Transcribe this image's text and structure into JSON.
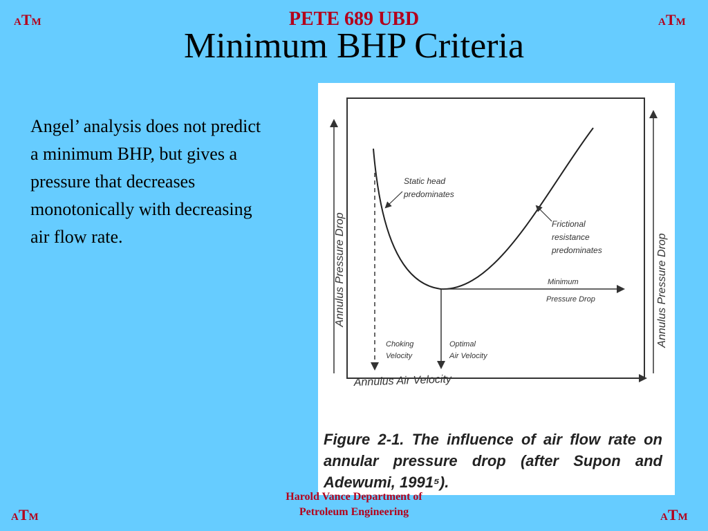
{
  "logo": {
    "small_a": "A",
    "big_t": "T",
    "small_m": "M"
  },
  "header": {
    "course": "PETE 689 UBD",
    "title": "Minimum BHP Criteria"
  },
  "body": {
    "paragraph": "Angel’ analysis does not predict a minimum BHP, but gives a pressure that decreases monotonically with decreasing air flow rate."
  },
  "figure": {
    "y_axis_left": "Annulus Pressure Drop",
    "y_axis_right": "Annulus Pressure Drop",
    "x_axis": "Annulus Air Velocity",
    "annotation_static": [
      "Static head",
      "predominates"
    ],
    "annotation_friction": [
      "Frictional",
      "resistance",
      "predominates"
    ],
    "annotation_minimum": [
      "Minimum",
      "Pressure Drop"
    ],
    "annotation_choking": [
      "Choking",
      "Velocity"
    ],
    "annotation_optimal": [
      "Optimal",
      "Air Velocity"
    ],
    "caption": "Figure 2-1.   The influence of air flow rate on annular pressure drop (after Supon and Adewumi, 1991⁵)."
  },
  "footer": {
    "line1": "Harold Vance Department of",
    "line2": "Petroleum Engineering"
  },
  "colors": {
    "background": "#66ccff",
    "accent": "#b3001b"
  }
}
